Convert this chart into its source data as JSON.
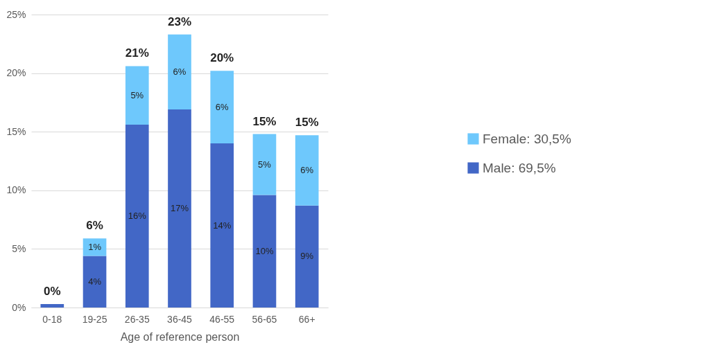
{
  "chart_data": {
    "type": "bar",
    "stacked": true,
    "xlabel": "Age of reference person",
    "categories": [
      "0-18",
      "19-25",
      "26-35",
      "36-45",
      "46-55",
      "56-65",
      "66+"
    ],
    "series": [
      {
        "name": "Male:     69,5%",
        "color": "#4267c6",
        "values": [
          0.3,
          4.4,
          15.6,
          16.9,
          14.0,
          9.6,
          8.7
        ],
        "value_labels": [
          null,
          "4%",
          "16%",
          "17%",
          "14%",
          "10%",
          "9%"
        ]
      },
      {
        "name": "Female:  30,5%",
        "color": "#6ec8fc",
        "values": [
          0,
          1.5,
          5.0,
          6.4,
          6.2,
          5.2,
          6.0
        ],
        "value_labels": [
          null,
          "1%",
          "5%",
          "6%",
          "6%",
          "5%",
          "6%"
        ]
      }
    ],
    "totals": [
      "0%",
      "6%",
      "21%",
      "23%",
      "20%",
      "15%",
      "15%"
    ],
    "ylim": [
      0,
      25
    ],
    "yticks": [
      {
        "value": 0,
        "label": "0%"
      },
      {
        "value": 5,
        "label": "5%"
      },
      {
        "value": 10,
        "label": "10%"
      },
      {
        "value": 15,
        "label": "15%"
      },
      {
        "value": 20,
        "label": "20%"
      },
      {
        "value": 25,
        "label": "25%"
      }
    ],
    "grid": "y",
    "legend": "right"
  }
}
